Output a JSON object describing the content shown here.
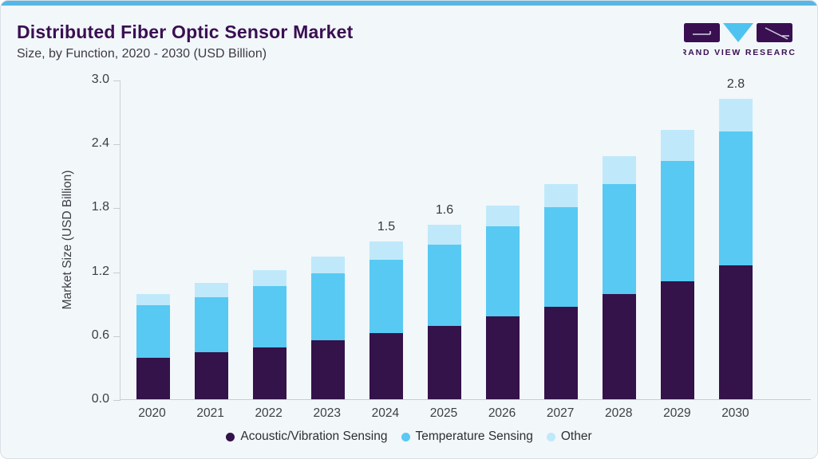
{
  "header": {
    "title": "Distributed Fiber Optic Sensor Market",
    "subtitle": "Size, by Function, 2020 - 2030 (USD Billion)",
    "logo": {
      "text": "GRAND VIEW RESEARCH"
    }
  },
  "colors": {
    "acoustic": "#34124a",
    "temperature": "#57c9f3",
    "other": "#bfe9fa",
    "top_bar": "#55b7e5",
    "title_text": "#3a0f52",
    "card_bg": "#f2f7fa",
    "axis_line": "#c6ccd2",
    "tick_text": "#3c4043"
  },
  "chart_data": {
    "type": "bar",
    "stacked": true,
    "title": "Distributed Fiber Optic Sensor Market Size, by Function, 2020 - 2030 (USD Billion)",
    "xlabel": "",
    "ylabel": "Market Size (USD Billion)",
    "ylim": [
      0,
      3.0
    ],
    "yticks": [
      "3.0",
      "2.4",
      "1.8",
      "1.2",
      "0.6",
      "0.0"
    ],
    "grid": false,
    "legend_position": "bottom",
    "categories": [
      "2020",
      "2021",
      "2022",
      "2023",
      "2024",
      "2025",
      "2026",
      "2027",
      "2028",
      "2029",
      "2030"
    ],
    "series": [
      {
        "name": "Acoustic/Vibration Sensing",
        "color_key": "acoustic",
        "values": [
          0.39,
          0.44,
          0.49,
          0.55,
          0.62,
          0.69,
          0.78,
          0.87,
          0.99,
          1.11,
          1.26
        ]
      },
      {
        "name": "Temperature Sensing",
        "color_key": "temperature",
        "values": [
          0.49,
          0.52,
          0.57,
          0.63,
          0.69,
          0.76,
          0.84,
          0.93,
          1.03,
          1.13,
          1.25
        ]
      },
      {
        "name": "Other",
        "color_key": "other",
        "values": [
          0.11,
          0.13,
          0.15,
          0.16,
          0.17,
          0.19,
          0.2,
          0.22,
          0.26,
          0.29,
          0.31
        ]
      }
    ],
    "totals": [
      0.99,
      1.09,
      1.21,
      1.34,
      1.48,
      1.64,
      1.82,
      2.02,
      2.28,
      2.53,
      2.82
    ],
    "bar_labels": {
      "2024": "1.5",
      "2025": "1.6",
      "2030": "2.8"
    }
  }
}
